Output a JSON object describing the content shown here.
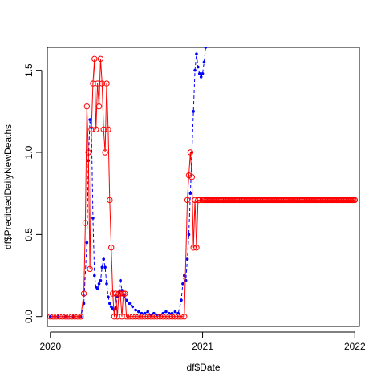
{
  "chart_data": {
    "type": "line",
    "title": "",
    "xlabel": "df$Date",
    "ylabel": "df$PredictedDailyNewDeaths",
    "x_ticks": [
      {
        "value": 2020,
        "label": "2020"
      },
      {
        "value": 2021,
        "label": "2021"
      },
      {
        "value": 2022,
        "label": "2022"
      }
    ],
    "y_ticks": [
      {
        "value": 0.0,
        "label": "0.0"
      },
      {
        "value": 0.5,
        "label": "0.5"
      },
      {
        "value": 1.0,
        "label": "1.0"
      },
      {
        "value": 1.5,
        "label": "1.5"
      }
    ],
    "xlim": [
      2019.98,
      2022.03
    ],
    "ylim": [
      -0.06,
      1.64
    ],
    "grid": false,
    "legend": "none",
    "series": [
      {
        "color": "#0000ff",
        "style": "dashed-line-dots",
        "x": [
          2020.0,
          2020.05,
          2020.1,
          2020.15,
          2020.2,
          2020.22,
          2020.24,
          2020.25,
          2020.26,
          2020.27,
          2020.28,
          2020.29,
          2020.3,
          2020.31,
          2020.32,
          2020.33,
          2020.34,
          2020.35,
          2020.36,
          2020.37,
          2020.38,
          2020.39,
          2020.4,
          2020.41,
          2020.42,
          2020.43,
          2020.44,
          2020.45,
          2020.46,
          2020.47,
          2020.48,
          2020.5,
          2020.52,
          2020.54,
          2020.56,
          2020.58,
          2020.6,
          2020.62,
          2020.64,
          2020.66,
          2020.68,
          2020.7,
          2020.72,
          2020.74,
          2020.76,
          2020.78,
          2020.8,
          2020.82,
          2020.84,
          2020.86,
          2020.87,
          2020.88,
          2020.89,
          2020.9,
          2020.91,
          2020.92,
          2020.93,
          2020.94,
          2020.95,
          2020.96,
          2020.97,
          2020.98,
          2020.99,
          2021.0,
          2021.01,
          2021.02
        ],
        "y": [
          0.0,
          0.0,
          0.0,
          0.0,
          0.0,
          0.08,
          0.45,
          0.95,
          1.2,
          1.15,
          0.6,
          0.25,
          0.18,
          0.17,
          0.2,
          0.22,
          0.3,
          0.35,
          0.3,
          0.2,
          0.12,
          0.08,
          0.06,
          0.05,
          0.04,
          0.05,
          0.12,
          0.15,
          0.22,
          0.16,
          0.13,
          0.1,
          0.08,
          0.06,
          0.04,
          0.03,
          0.02,
          0.02,
          0.03,
          0.01,
          0.02,
          0.01,
          0.01,
          0.02,
          0.03,
          0.02,
          0.02,
          0.03,
          0.02,
          0.1,
          0.2,
          0.25,
          0.22,
          0.35,
          0.5,
          0.75,
          1.0,
          1.25,
          1.5,
          1.6,
          1.52,
          1.48,
          1.46,
          1.48,
          1.55,
          1.64
        ]
      },
      {
        "color": "#ff0000",
        "style": "line-open-circles",
        "x": [
          2020.0,
          2020.02,
          2020.04,
          2020.06,
          2020.08,
          2020.1,
          2020.12,
          2020.14,
          2020.16,
          2020.18,
          2020.2,
          2020.22,
          2020.23,
          2020.24,
          2020.25,
          2020.26,
          2020.27,
          2020.28,
          2020.29,
          2020.3,
          2020.31,
          2020.32,
          2020.33,
          2020.34,
          2020.35,
          2020.36,
          2020.37,
          2020.38,
          2020.39,
          2020.4,
          2020.41,
          2020.42,
          2020.43,
          2020.44,
          2020.45,
          2020.46,
          2020.47,
          2020.48,
          2020.49,
          2020.5,
          2020.52,
          2020.54,
          2020.56,
          2020.58,
          2020.6,
          2020.62,
          2020.64,
          2020.66,
          2020.68,
          2020.7,
          2020.72,
          2020.74,
          2020.76,
          2020.78,
          2020.8,
          2020.82,
          2020.84,
          2020.86,
          2020.88,
          2020.9,
          2020.91,
          2020.92,
          2020.93,
          2020.94,
          2020.95,
          2020.96,
          2020.97,
          2020.98,
          2021.0,
          2021.25,
          2021.5,
          2021.75,
          2022.0
        ],
        "y": [
          0.0,
          0.0,
          0.0,
          0.0,
          0.0,
          0.0,
          0.0,
          0.0,
          0.0,
          0.0,
          0.0,
          0.14,
          0.57,
          1.28,
          1.0,
          0.29,
          1.14,
          1.42,
          1.57,
          1.14,
          1.42,
          1.28,
          1.57,
          1.42,
          1.14,
          1.0,
          1.42,
          1.14,
          0.71,
          0.42,
          0.14,
          0.0,
          0.14,
          0.0,
          0.14,
          0.14,
          0.0,
          0.14,
          0.14,
          0.0,
          0.0,
          0.0,
          0.0,
          0.0,
          0.0,
          0.0,
          0.0,
          0.0,
          0.0,
          0.0,
          0.0,
          0.0,
          0.0,
          0.0,
          0.0,
          0.0,
          0.0,
          0.0,
          0.0,
          0.71,
          0.86,
          1.0,
          0.85,
          0.42,
          0.71,
          0.42,
          0.71,
          0.71,
          0.71,
          0.71,
          0.71,
          0.71,
          0.71
        ]
      }
    ]
  }
}
